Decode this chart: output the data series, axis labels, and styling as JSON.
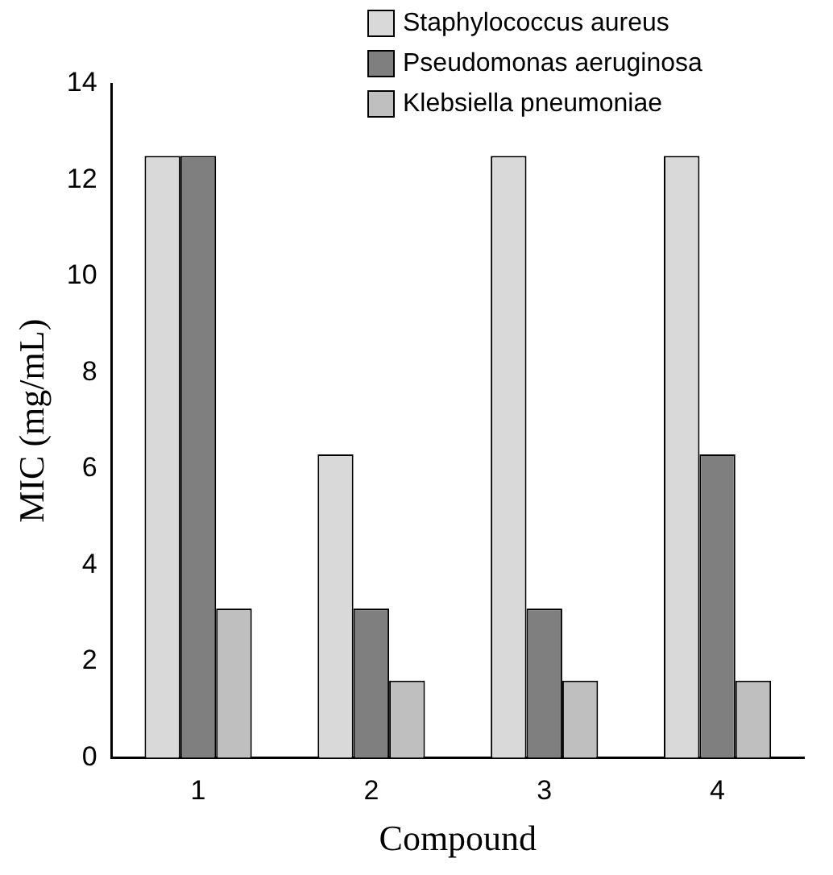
{
  "chart_data": {
    "type": "bar",
    "xlabel": "Compound",
    "ylabel": "MIC (mg/mL)",
    "categories": [
      "1",
      "2",
      "3",
      "4"
    ],
    "series": [
      {
        "name": "Staphylococcus aureus",
        "color": "#d9d9d9",
        "values": [
          12.5,
          6.3,
          12.5,
          12.5
        ]
      },
      {
        "name": "Pseudomonas aeruginosa",
        "color": "#7f7f7f",
        "values": [
          12.5,
          3.1,
          3.1,
          6.3
        ]
      },
      {
        "name": "Klebsiella pneumoniae",
        "color": "#bfbfbf",
        "values": [
          3.1,
          1.6,
          1.6,
          1.6
        ]
      }
    ],
    "ylim": [
      0,
      14
    ],
    "yticks": [
      0,
      2,
      4,
      6,
      8,
      10,
      12,
      14
    ],
    "grid": false,
    "legend": "top right"
  }
}
